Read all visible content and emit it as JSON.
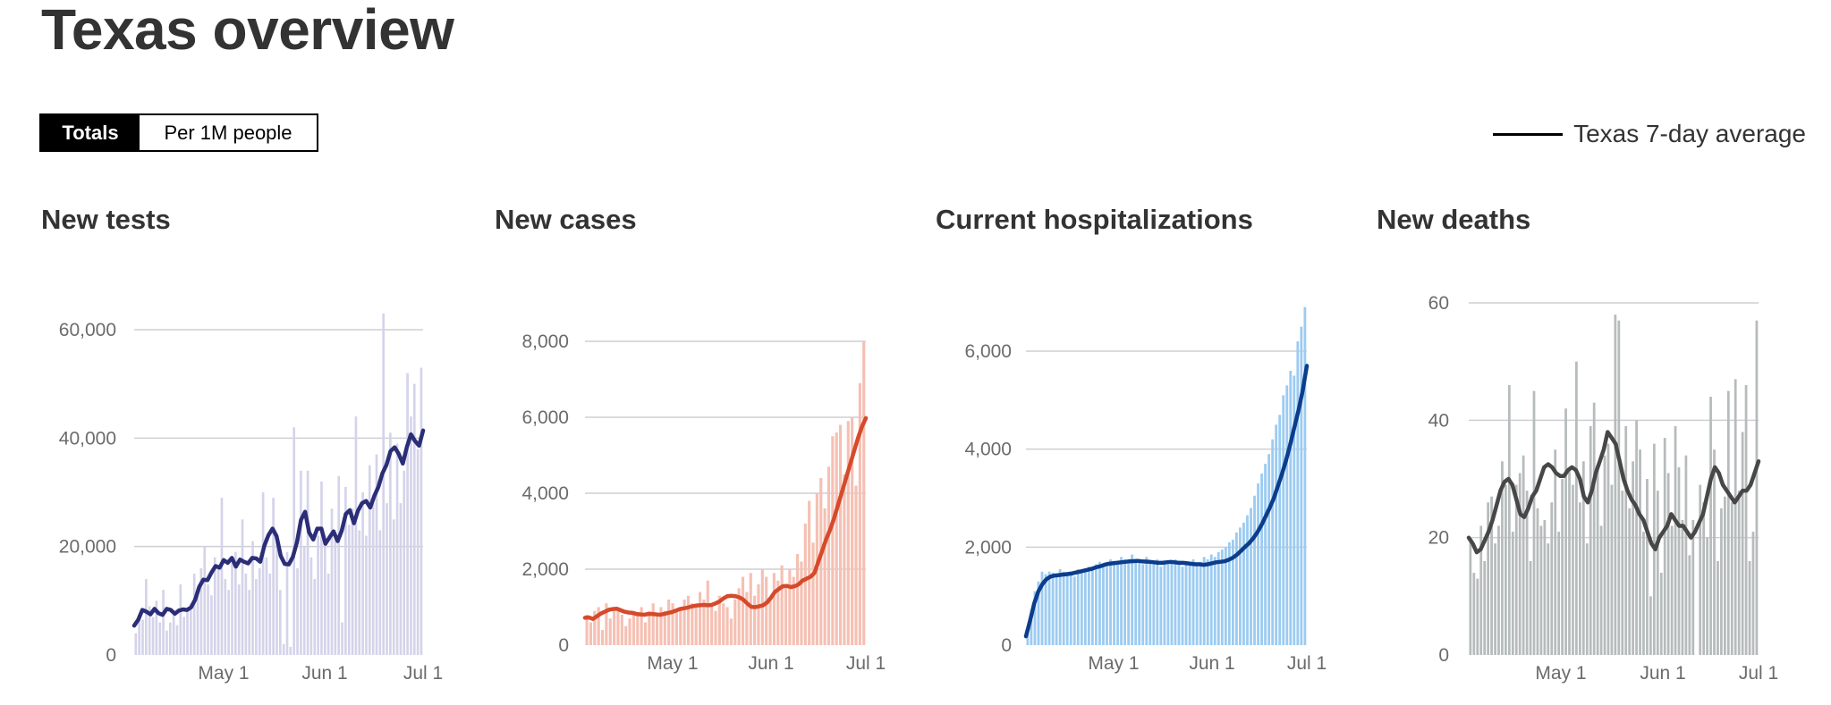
{
  "page_title": "Texas overview",
  "toggle": {
    "totals_label": "Totals",
    "per_capita_label": "Per 1M people",
    "selected": "Totals"
  },
  "legend": {
    "label": "Texas 7-day average"
  },
  "charts": [
    {
      "title": "New tests"
    },
    {
      "title": "New cases"
    },
    {
      "title": "Current hospitalizations"
    },
    {
      "title": "New deaths"
    }
  ],
  "chart_data": [
    {
      "type": "bar",
      "title": "New tests",
      "x_range": [
        "2020-03-31",
        "2020-07-01"
      ],
      "x_ticks": [
        "May 1",
        "Jun 1",
        "Jul 1"
      ],
      "y_ticks": [
        "0",
        "20,000",
        "40,000",
        "60,000"
      ],
      "ylim": [
        0,
        60000
      ],
      "grid": true,
      "colors": {
        "bars": "#d4d3ea",
        "line": "#2b2e77"
      },
      "series": [
        {
          "kind": "bars",
          "values": [
            4000,
            7500,
            6500,
            14000,
            9000,
            7000,
            10000,
            6000,
            12000,
            4500,
            6000,
            8000,
            5500,
            13000,
            7000,
            8000,
            9500,
            15000,
            11000,
            16000,
            20000,
            13000,
            11000,
            18000,
            16000,
            29000,
            14000,
            12000,
            17000,
            19000,
            13000,
            25000,
            15000,
            12000,
            21000,
            14000,
            16000,
            30000,
            18000,
            15000,
            29000,
            22000,
            12000,
            2000,
            19000,
            1500,
            42000,
            16000,
            34000,
            20000,
            34000,
            18000,
            14000,
            22000,
            32000,
            21000,
            15000,
            27000,
            22000,
            33000,
            6000,
            31000,
            24000,
            27000,
            44000,
            23000,
            30000,
            22000,
            35000,
            29000,
            37000,
            23000,
            63000,
            28000,
            41000,
            25000,
            39000,
            28000,
            34000,
            52000,
            44000,
            50000,
            38000,
            53000
          ]
        },
        {
          "kind": "line",
          "name": "Texas 7-day average",
          "values": [
            5400,
            6500,
            8300,
            8000,
            7500,
            8500,
            7700,
            7400,
            8500,
            8300,
            7600,
            8200,
            8400,
            8300,
            8800,
            10200,
            12600,
            13900,
            13800,
            15200,
            16400,
            16100,
            17500,
            17000,
            17900,
            16300,
            17600,
            17200,
            16900,
            17900,
            17800,
            17200,
            20200,
            22100,
            23300,
            21900,
            18300,
            16800,
            16700,
            18100,
            20800,
            24900,
            26400,
            22600,
            21300,
            23300,
            23300,
            20500,
            21700,
            22800,
            21000,
            22900,
            26000,
            26700,
            24300,
            26600,
            28000,
            28400,
            27200,
            29300,
            31000,
            33500,
            35100,
            37600,
            38300,
            37100,
            35300,
            38300,
            40700,
            39500,
            38600,
            41400
          ]
        }
      ]
    },
    {
      "type": "bar",
      "title": "New cases",
      "x_range": [
        "2020-03-31",
        "2020-07-01"
      ],
      "x_ticks": [
        "May 1",
        "Jun 1",
        "Jul 1"
      ],
      "y_ticks": [
        "0",
        "2,000",
        "4,000",
        "6,000",
        "8,000"
      ],
      "ylim": [
        0,
        8000
      ],
      "grid": true,
      "colors": {
        "bars": "#f5c0b3",
        "line": "#d54a2b"
      },
      "series": [
        {
          "kind": "bars",
          "values": [
            800,
            600,
            900,
            1000,
            400,
            1100,
            700,
            900,
            1000,
            800,
            500,
            700,
            900,
            800,
            1000,
            600,
            900,
            1100,
            800,
            1000,
            900,
            1200,
            1100,
            900,
            1000,
            1200,
            1300,
            1100,
            1000,
            1400,
            1200,
            1700,
            1100,
            900,
            1300,
            1100,
            1000,
            700,
            1200,
            1500,
            1800,
            1400,
            1900,
            1300,
            1600,
            2000,
            1800,
            1200,
            1900,
            1700,
            2100,
            1500,
            2000,
            1800,
            2400,
            2200,
            3200,
            3800,
            2700,
            4000,
            4400,
            3600,
            4700,
            5500,
            5600,
            5800,
            4500,
            5900,
            6000,
            4200,
            6900,
            8000
          ]
        },
        {
          "kind": "line",
          "name": "Texas 7-day average",
          "values": [
            720,
            730,
            690,
            760,
            830,
            880,
            930,
            950,
            960,
            920,
            880,
            860,
            850,
            820,
            810,
            800,
            820,
            820,
            810,
            800,
            820,
            850,
            870,
            910,
            950,
            970,
            990,
            1020,
            1040,
            1050,
            1060,
            1050,
            1060,
            1100,
            1150,
            1230,
            1290,
            1300,
            1290,
            1260,
            1200,
            1100,
            1010,
            1000,
            1020,
            1050,
            1120,
            1250,
            1400,
            1480,
            1550,
            1560,
            1530,
            1550,
            1600,
            1700,
            1750,
            1800,
            1900,
            2200,
            2500,
            2800,
            3050,
            3350,
            3700,
            4050,
            4400,
            4750,
            5100,
            5450,
            5750,
            5980
          ]
        }
      ]
    },
    {
      "type": "bar",
      "title": "Current hospitalizations",
      "x_range": [
        "2020-04-03",
        "2020-07-01"
      ],
      "x_ticks": [
        "May 1",
        "Jun 1",
        "Jul 1"
      ],
      "y_ticks": [
        "0",
        "2,000",
        "4,000",
        "6,000"
      ],
      "ylim": [
        0,
        6000
      ],
      "grid": true,
      "colors": {
        "bars": "#9ccbf1",
        "line": "#0b3d8c"
      },
      "series": [
        {
          "kind": "bars",
          "values": [
            300,
            700,
            1100,
            1300,
            1500,
            1450,
            1500,
            1480,
            1400,
            1550,
            1500,
            1450,
            1500,
            1400,
            1550,
            1480,
            1500,
            1600,
            1550,
            1650,
            1700,
            1650,
            1600,
            1750,
            1700,
            1650,
            1800,
            1750,
            1700,
            1850,
            1750,
            1700,
            1650,
            1800,
            1700,
            1650,
            1750,
            1600,
            1700,
            1650,
            1700,
            1750,
            1700,
            1600,
            1650,
            1700,
            1750,
            1650,
            1700,
            1800,
            1750,
            1850,
            1800,
            1900,
            1950,
            2000,
            2100,
            2150,
            2300,
            2400,
            2500,
            2650,
            2800,
            3050,
            3300,
            3500,
            3700,
            3900,
            4200,
            4500,
            4700,
            5100,
            5300,
            5600,
            5500,
            6200,
            6500,
            6900
          ]
        },
        {
          "kind": "line",
          "name": "Texas 7-day average",
          "values": [
            180,
            500,
            850,
            1100,
            1250,
            1350,
            1400,
            1420,
            1430,
            1440,
            1450,
            1460,
            1480,
            1500,
            1520,
            1540,
            1560,
            1590,
            1610,
            1640,
            1660,
            1670,
            1680,
            1690,
            1700,
            1710,
            1715,
            1720,
            1710,
            1705,
            1700,
            1690,
            1680,
            1680,
            1690,
            1700,
            1690,
            1680,
            1680,
            1670,
            1660,
            1650,
            1650,
            1640,
            1650,
            1670,
            1690,
            1700,
            1710,
            1740,
            1780,
            1840,
            1920,
            2000,
            2080,
            2180,
            2300,
            2450,
            2620,
            2800,
            3000,
            3250,
            3500,
            3780,
            4100,
            4450,
            4800,
            5200,
            5700
          ]
        }
      ]
    },
    {
      "type": "bar",
      "title": "New deaths",
      "x_range": [
        "2020-03-31",
        "2020-07-01"
      ],
      "x_ticks": [
        "May 1",
        "Jun 1",
        "Jul 1"
      ],
      "y_ticks": [
        "0",
        "20",
        "40",
        "60"
      ],
      "ylim": [
        0,
        60
      ],
      "grid": true,
      "colors": {
        "bars": "#b6bbbb",
        "line": "#474747"
      },
      "series": [
        {
          "kind": "bars",
          "values": [
            20,
            14,
            13,
            22,
            16,
            26,
            27,
            19,
            22,
            33,
            29,
            46,
            21,
            29,
            31,
            34,
            28,
            16,
            45,
            25,
            22,
            23,
            19,
            26,
            35,
            21,
            30,
            42,
            32,
            29,
            50,
            26,
            33,
            19,
            39,
            43,
            32,
            22,
            34,
            36,
            29,
            58,
            57,
            28,
            39,
            25,
            33,
            40,
            35,
            21,
            30,
            10,
            36,
            28,
            14,
            37,
            31,
            22,
            39,
            32,
            23,
            34,
            17,
            23,
            0,
            29,
            26,
            20,
            44,
            35,
            16,
            25,
            27,
            45,
            26,
            47,
            28,
            38,
            46,
            16,
            21,
            57
          ]
        },
        {
          "kind": "line",
          "name": "Texas 7-day average",
          "values": [
            20,
            19,
            17.5,
            18,
            19.5,
            21,
            23,
            25.5,
            28,
            29.5,
            30,
            29,
            26.5,
            24,
            23.5,
            25,
            27,
            28,
            30,
            32,
            32.5,
            32,
            31,
            30.5,
            30.5,
            31.5,
            32,
            31.5,
            30,
            27,
            26,
            28,
            31,
            33,
            35,
            38,
            37,
            36,
            33,
            30,
            28,
            26.5,
            25.5,
            24,
            23,
            21,
            19,
            18,
            20,
            21,
            22,
            24,
            23,
            22,
            22,
            21,
            20,
            21,
            22.5,
            24,
            27,
            30,
            32,
            31,
            29,
            28,
            27,
            26,
            27,
            28,
            28,
            29,
            31,
            33
          ]
        }
      ]
    }
  ]
}
